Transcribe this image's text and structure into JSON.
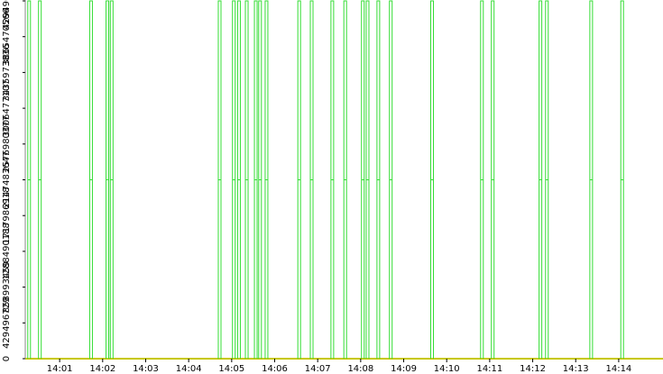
{
  "chart_data": {
    "type": "pulse",
    "xlim": [
      0.2,
      15.03
    ],
    "xticks": [
      {
        "value": 1,
        "label": "14:01"
      },
      {
        "value": 2,
        "label": "14:02"
      },
      {
        "value": 3,
        "label": "14:03"
      },
      {
        "value": 4,
        "label": "14:04"
      },
      {
        "value": 5,
        "label": "14:05"
      },
      {
        "value": 6,
        "label": "14:06"
      },
      {
        "value": 7,
        "label": "14:07"
      },
      {
        "value": 8,
        "label": "14:08"
      },
      {
        "value": 9,
        "label": "14:09"
      },
      {
        "value": 10,
        "label": "14:10"
      },
      {
        "value": 11,
        "label": "14:11"
      },
      {
        "value": 12,
        "label": "14:12"
      },
      {
        "value": 13,
        "label": "14:13"
      },
      {
        "value": 14,
        "label": "14:14"
      }
    ],
    "ylim": [
      0,
      4294967295
    ],
    "yticks": [
      0,
      429496729,
      858993459,
      1288490188,
      1717986918,
      2147483647,
      2576980377,
      3006477107,
      3435973836,
      3865470566,
      4294967295
    ],
    "series": [
      {
        "color": "#33dd33",
        "x": [
          0.29,
          0.54,
          1.73,
          2.11,
          2.21,
          4.72,
          5.05,
          5.17,
          5.35,
          5.56,
          5.66,
          5.81,
          6.57,
          6.86,
          7.34,
          7.64,
          8.05,
          8.16,
          8.41,
          8.7,
          9.66,
          10.82,
          11.07,
          12.18,
          12.33,
          13.36,
          14.08
        ],
        "values": [
          4294967295,
          4294967295,
          4294967295,
          4294967295,
          4294967295,
          4294967295,
          4294967295,
          4294967295,
          4294967295,
          4294967295,
          4294967295,
          4294967295,
          4294967295,
          4294967295,
          4294967295,
          4294967295,
          4294967295,
          4294967295,
          4294967295,
          4294967295,
          4294967295,
          4294967295,
          4294967295,
          4294967295,
          4294967295,
          4294967295,
          4294967295
        ]
      }
    ]
  }
}
